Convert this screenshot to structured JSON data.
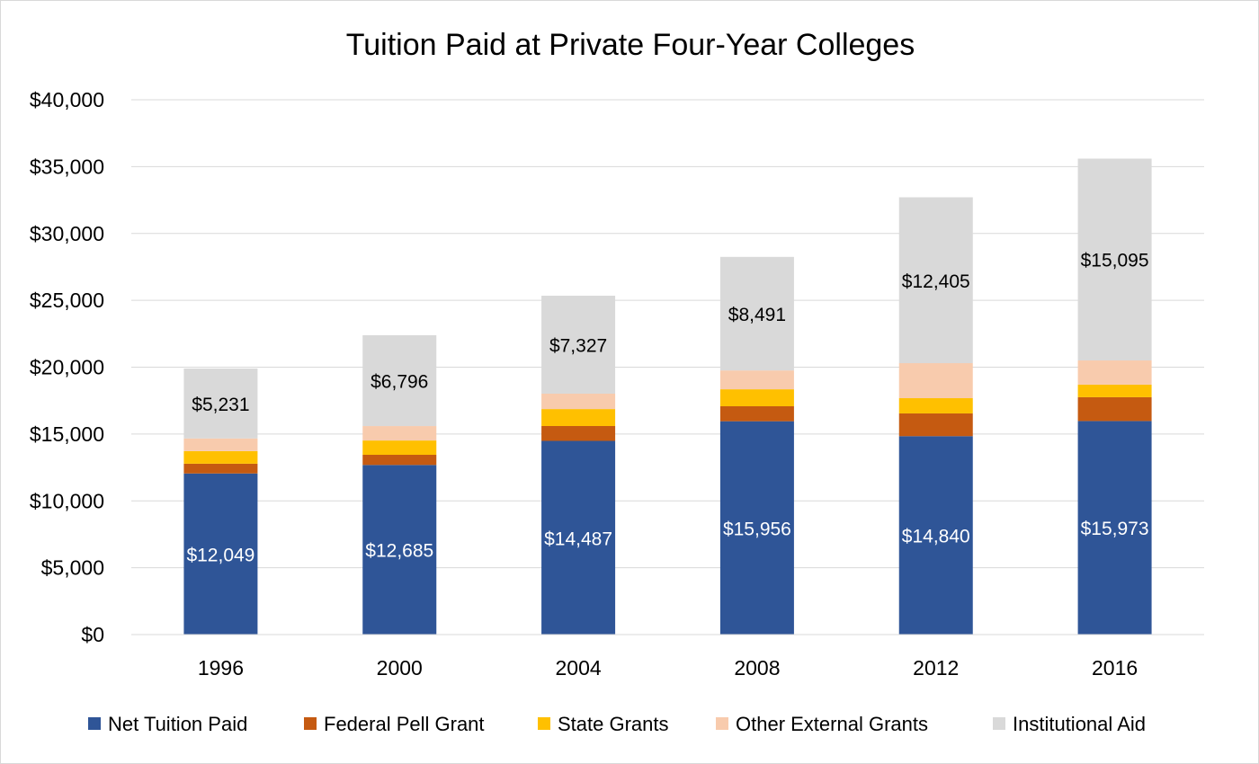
{
  "chart_data": {
    "type": "bar",
    "stacked": true,
    "title": "Tuition Paid at Private Four-Year Colleges",
    "xlabel": "",
    "ylabel": "",
    "ylim": [
      0,
      40000
    ],
    "yticks": [
      0,
      5000,
      10000,
      15000,
      20000,
      25000,
      30000,
      35000,
      40000
    ],
    "ytick_labels": [
      "$0",
      "$5,000",
      "$10,000",
      "$15,000",
      "$20,000",
      "$25,000",
      "$30,000",
      "$35,000",
      "$40,000"
    ],
    "grid": true,
    "legend_position": "bottom",
    "categories": [
      "1996",
      "2000",
      "2004",
      "2008",
      "2012",
      "2016"
    ],
    "series": [
      {
        "name": "Net Tuition Paid",
        "color": "#2F5597",
        "values": [
          12049,
          12685,
          14487,
          15956,
          14840,
          15973
        ],
        "labels": [
          "$12,049",
          "$12,685",
          "$14,487",
          "$15,956",
          "$14,840",
          "$15,973"
        ],
        "label_color": "#ffffff"
      },
      {
        "name": "Federal Pell Grant",
        "color": "#C55A11",
        "values": [
          730,
          760,
          1110,
          1120,
          1700,
          1780
        ]
      },
      {
        "name": "State Grants",
        "color": "#FFC000",
        "values": [
          940,
          1070,
          1270,
          1270,
          1140,
          940
        ]
      },
      {
        "name": "Other External Grants",
        "color": "#F8CBAD",
        "values": [
          950,
          1080,
          1150,
          1410,
          2620,
          1810
        ]
      },
      {
        "name": "Institutional Aid",
        "color": "#D9D9D9",
        "values": [
          5231,
          6796,
          7327,
          8491,
          12405,
          15095
        ],
        "labels": [
          "$5,231",
          "$6,796",
          "$7,327",
          "$8,491",
          "$12,405",
          "$15,095"
        ],
        "label_color": "#000000"
      }
    ]
  }
}
